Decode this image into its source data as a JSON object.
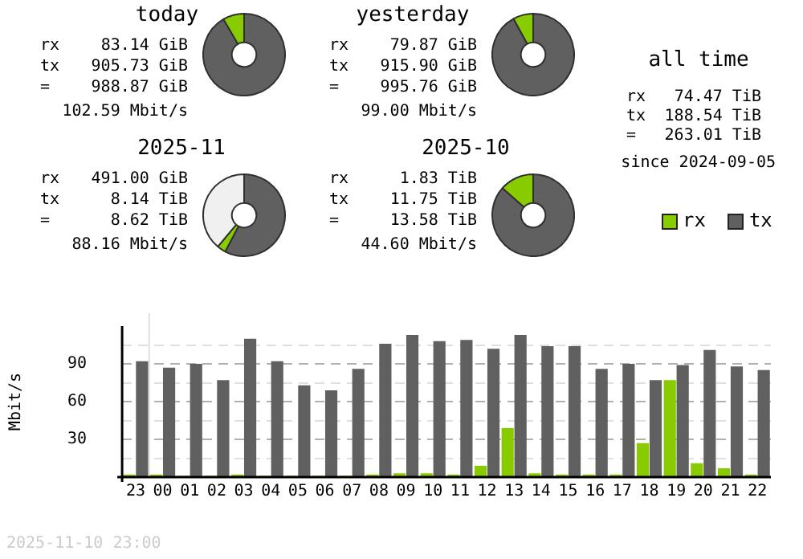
{
  "chart_data": [
    {
      "type": "donut",
      "title": "today",
      "categories": [
        null,
        null
      ],
      "values": [
        91.6,
        8.4
      ],
      "colors": [
        "#606060",
        "#88cc00"
      ],
      "annotations": [
        "rx 83.14 GiB",
        "tx 905.73 GiB",
        "= 988.87 GiB",
        "102.59 Mbit/s"
      ]
    },
    {
      "type": "donut",
      "title": "yesterday",
      "categories": [
        null,
        null
      ],
      "values": [
        92.0,
        8.0
      ],
      "colors": [
        "#606060",
        "#88cc00"
      ],
      "annotations": [
        "rx 79.87 GiB",
        "tx 915.90 GiB",
        "= 995.76 GiB",
        "99.00 Mbit/s"
      ]
    },
    {
      "type": "other",
      "title": "all time",
      "annotations": [
        "rx 74.47 TiB",
        "tx 188.54 TiB",
        "= 263.01 TiB",
        "since 2024-09-05"
      ]
    },
    {
      "type": "donut",
      "title": "2025-11",
      "categories": [
        null,
        null,
        null
      ],
      "values": [
        57.6,
        3.5,
        38.9
      ],
      "colors": [
        "#606060",
        "#88cc00",
        "#f0f0f0"
      ],
      "annotations": [
        "rx 491.00 GiB",
        "tx 8.14 TiB",
        "= 8.62 TiB",
        "88.16 Mbit/s"
      ]
    },
    {
      "type": "donut",
      "title": "2025-10",
      "categories": [
        null,
        null
      ],
      "values": [
        86.5,
        13.5
      ],
      "colors": [
        "#606060",
        "#88cc00"
      ],
      "annotations": [
        "rx 1.83 TiB",
        "tx 11.75 TiB",
        "= 13.58 TiB",
        "44.60 Mbit/s"
      ]
    },
    {
      "type": "bar",
      "ylabel": "Mbit/s",
      "categories": [
        "23",
        "00",
        "01",
        "02",
        "03",
        "04",
        "05",
        "06",
        "07",
        "08",
        "09",
        "10",
        "11",
        "12",
        "13",
        "14",
        "15",
        "16",
        "17",
        "18",
        "19",
        "20",
        "21",
        "22"
      ],
      "series": [
        {
          "name": "rx",
          "color": "#88cc00",
          "values": [
            2,
            2,
            1,
            1,
            2,
            1,
            1,
            1,
            1,
            2,
            3,
            3,
            2,
            9,
            39,
            3,
            2,
            2,
            2,
            27,
            77,
            11,
            7,
            2
          ]
        },
        {
          "name": "tx",
          "color": "#606060",
          "values": [
            92,
            87,
            90,
            77,
            110,
            92,
            73,
            69,
            86,
            106,
            113,
            108,
            109,
            102,
            113,
            104,
            104,
            86,
            90,
            77,
            89,
            101,
            88,
            85
          ]
        }
      ],
      "ylim": [
        0,
        120
      ],
      "yticks": [
        {
          "value": 15,
          "label": null
        },
        30,
        {
          "value": 45,
          "label": null
        },
        60,
        {
          "value": 75,
          "label": null
        },
        90,
        {
          "value": 105,
          "label": null
        }
      ],
      "grid": "y",
      "legend": "top right",
      "ref_lines": [
        {
          "axis": "x",
          "value": "00",
          "color": "#dddddd"
        }
      ],
      "annotations": [
        "2025-11-10 23:00"
      ]
    }
  ]
}
